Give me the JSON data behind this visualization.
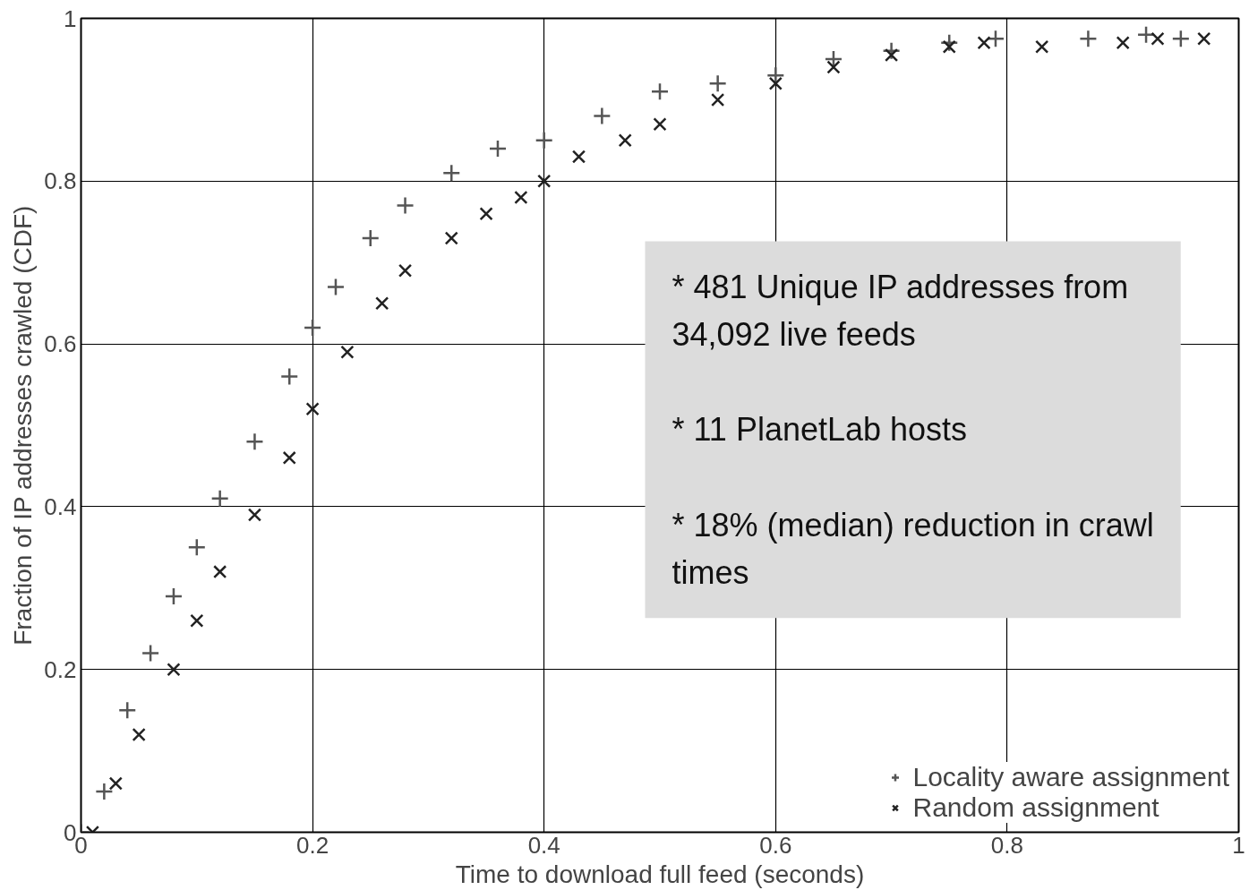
{
  "chart_data": {
    "type": "scatter",
    "xlabel": "Time to download full feed (seconds)",
    "ylabel": "Fraction of IP addresses crawled (CDF)",
    "xlim": [
      0,
      1
    ],
    "ylim": [
      0,
      1
    ],
    "xticks": [
      0,
      0.2,
      0.4,
      0.6,
      0.8,
      1
    ],
    "yticks": [
      0,
      0.2,
      0.4,
      0.6,
      0.8,
      1
    ],
    "grid": true,
    "legend": "bottom right",
    "annotations": [
      "* 481 Unique IP addresses from 34,092 live feeds",
      "* 11 PlanetLab hosts",
      "* 18% (median) reduction in crawl times"
    ],
    "series": [
      {
        "name": "Locality aware assignment",
        "color": "#555555",
        "marker": "cross",
        "x": [
          0,
          0.02,
          0.04,
          0.06,
          0.08,
          0.1,
          0.12,
          0.15,
          0.18,
          0.2,
          0.22,
          0.25,
          0.28,
          0.32,
          0.36,
          0.4,
          0.45,
          0.5,
          0.55,
          0.6,
          0.65,
          0.7,
          0.75,
          0.79,
          0.87,
          0.92,
          0.95
        ],
        "values": [
          0,
          0.05,
          0.15,
          0.22,
          0.29,
          0.35,
          0.41,
          0.48,
          0.56,
          0.62,
          0.67,
          0.73,
          0.77,
          0.81,
          0.84,
          0.85,
          0.88,
          0.91,
          0.92,
          0.93,
          0.95,
          0.96,
          0.97,
          0.975,
          0.975,
          0.98,
          0.975
        ]
      },
      {
        "name": "Random assignment",
        "color": "#222222",
        "marker": "x",
        "x": [
          0.01,
          0.03,
          0.05,
          0.08,
          0.1,
          0.12,
          0.15,
          0.18,
          0.2,
          0.23,
          0.26,
          0.28,
          0.32,
          0.35,
          0.38,
          0.4,
          0.43,
          0.47,
          0.5,
          0.55,
          0.6,
          0.65,
          0.7,
          0.75,
          0.78,
          0.83,
          0.9,
          0.93,
          0.97
        ],
        "values": [
          0,
          0.06,
          0.12,
          0.2,
          0.26,
          0.32,
          0.39,
          0.46,
          0.52,
          0.59,
          0.65,
          0.69,
          0.73,
          0.76,
          0.78,
          0.8,
          0.83,
          0.85,
          0.87,
          0.9,
          0.92,
          0.94,
          0.955,
          0.965,
          0.97,
          0.965,
          0.97,
          0.975,
          0.975
        ]
      }
    ]
  }
}
